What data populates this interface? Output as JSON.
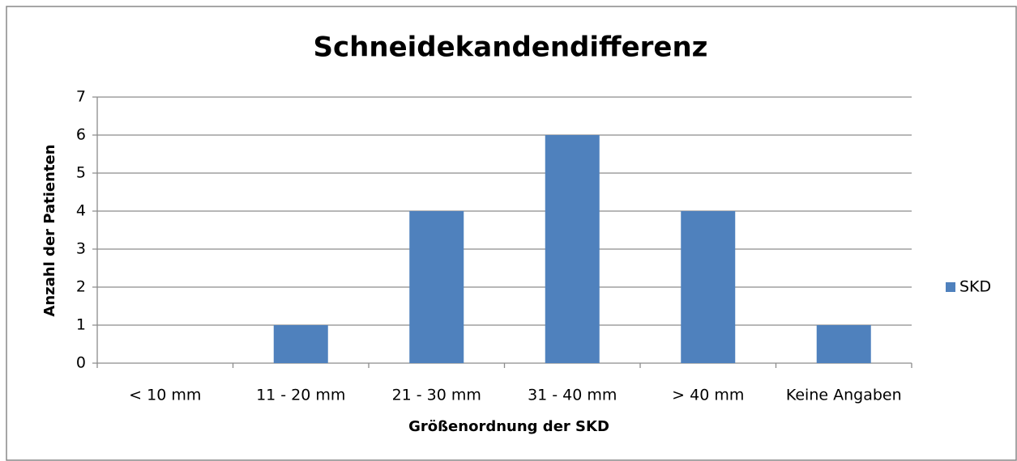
{
  "chart_data": {
    "type": "bar",
    "title": "Schneidekandendifferenz",
    "x_label": "Größenordnung der SKD",
    "y_label": "Anzahl der Patienten",
    "categories": [
      "< 10 mm",
      "11 - 20 mm",
      "21 - 30 mm",
      "31 - 40 mm",
      "> 40 mm",
      "Keine Angaben"
    ],
    "series": [
      {
        "name": "SKD",
        "color": "#4f81bd",
        "values": [
          0,
          1,
          4,
          6,
          4,
          1
        ]
      }
    ],
    "ylim": [
      0,
      7
    ],
    "yticks": [
      0,
      1,
      2,
      3,
      4,
      5,
      6,
      7
    ],
    "grid": true,
    "legend": "right"
  }
}
